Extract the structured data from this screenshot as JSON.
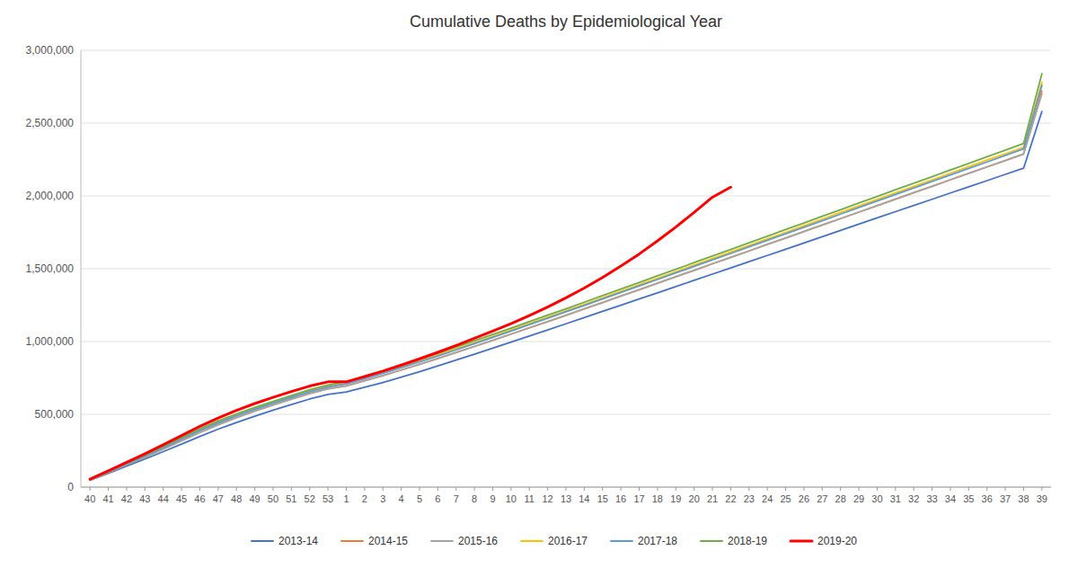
{
  "chart_data": {
    "type": "line",
    "title": "Cumulative Deaths by Epidemiological Year",
    "categories": [
      "40",
      "41",
      "42",
      "43",
      "44",
      "45",
      "46",
      "47",
      "48",
      "49",
      "50",
      "51",
      "52",
      "53",
      "1",
      "2",
      "3",
      "4",
      "5",
      "6",
      "7",
      "8",
      "9",
      "10",
      "11",
      "12",
      "13",
      "14",
      "15",
      "16",
      "17",
      "18",
      "19",
      "20",
      "21",
      "22",
      "23",
      "24",
      "25",
      "26",
      "27",
      "28",
      "29",
      "30",
      "31",
      "32",
      "33",
      "34",
      "35",
      "36",
      "37",
      "38",
      "39"
    ],
    "series": [
      {
        "name": "2013-14",
        "color": "#4472C4",
        "values": [
          47000,
          95000,
          144000,
          193000,
          244000,
          296000,
          348000,
          398000,
          444000,
          487000,
          528000,
          567000,
          605000,
          637000,
          654000,
          686000,
          719000,
          755000,
          793000,
          832000,
          873000,
          913000,
          954000,
          996000,
          1038000,
          1080000,
          1122000,
          1164000,
          1207000,
          1249000,
          1292000,
          1334000,
          1377000,
          1420000,
          1463000,
          1505000,
          1548000,
          1591000,
          1634000,
          1677000,
          1720000,
          1763000,
          1806000,
          1849000,
          1892000,
          1935000,
          1977000,
          2020000,
          2063000,
          2105000,
          2148000,
          2190000,
          2580000
        ]
      },
      {
        "name": "2014-15",
        "color": "#ED7D31",
        "values": [
          50000,
          101000,
          153000,
          206000,
          261000,
          318000,
          375000,
          428000,
          477000,
          522000,
          564000,
          604000,
          643000,
          675000,
          695000,
          730000,
          766000,
          804000,
          843000,
          884000,
          925000,
          966000,
          1008000,
          1051000,
          1094000,
          1137000,
          1180000,
          1224000,
          1268000,
          1312000,
          1356000,
          1400000,
          1445000,
          1489000,
          1534000,
          1578000,
          1622000,
          1667000,
          1711000,
          1756000,
          1800000,
          1844000,
          1889000,
          1933000,
          1978000,
          2022000,
          2066000,
          2111000,
          2155000,
          2199000,
          2243000,
          2288000,
          2720000
        ]
      },
      {
        "name": "2015-16",
        "color": "#A5A5A5",
        "values": [
          50000,
          101000,
          153000,
          206000,
          261000,
          318000,
          375000,
          428000,
          477000,
          522000,
          564000,
          604000,
          643000,
          675000,
          695000,
          730000,
          766000,
          804000,
          843000,
          884000,
          925000,
          966000,
          1008000,
          1051000,
          1094000,
          1137000,
          1180000,
          1224000,
          1268000,
          1312000,
          1356000,
          1400000,
          1445000,
          1489000,
          1534000,
          1578000,
          1622000,
          1667000,
          1711000,
          1756000,
          1800000,
          1844000,
          1889000,
          1933000,
          1978000,
          2022000,
          2066000,
          2111000,
          2155000,
          2199000,
          2243000,
          2288000,
          2700000
        ]
      },
      {
        "name": "2016-17",
        "color": "#FFC000",
        "values": [
          52000,
          106000,
          161000,
          217000,
          274000,
          334000,
          393000,
          447000,
          496000,
          540000,
          581000,
          621000,
          660000,
          693000,
          714000,
          750000,
          787000,
          826000,
          866000,
          908000,
          950000,
          992000,
          1035000,
          1079000,
          1123000,
          1167000,
          1211000,
          1256000,
          1300000,
          1345000,
          1390000,
          1435000,
          1480000,
          1525000,
          1570000,
          1615000,
          1660000,
          1705000,
          1750000,
          1796000,
          1841000,
          1886000,
          1931000,
          1976000,
          2021000,
          2066000,
          2111000,
          2156000,
          2201000,
          2246000,
          2290000,
          2335000,
          2780000
        ]
      },
      {
        "name": "2017-18",
        "color": "#5B9BD5",
        "values": [
          51000,
          104000,
          158000,
          213000,
          270000,
          329000,
          388000,
          441000,
          490000,
          535000,
          576000,
          616000,
          655000,
          688000,
          709000,
          744000,
          781000,
          820000,
          860000,
          901000,
          943000,
          985000,
          1028000,
          1072000,
          1116000,
          1160000,
          1204000,
          1248000,
          1293000,
          1337000,
          1382000,
          1426000,
          1471000,
          1516000,
          1561000,
          1605000,
          1650000,
          1695000,
          1740000,
          1785000,
          1830000,
          1875000,
          1920000,
          1965000,
          2010000,
          2055000,
          2099000,
          2144000,
          2189000,
          2233000,
          2278000,
          2323000,
          2760000
        ]
      },
      {
        "name": "2018-19",
        "color": "#70AD47",
        "values": [
          53000,
          108000,
          164000,
          220000,
          279000,
          340000,
          400000,
          454000,
          503000,
          547000,
          589000,
          629000,
          669000,
          702000,
          724000,
          760000,
          797000,
          837000,
          877000,
          919000,
          962000,
          1005000,
          1048000,
          1092000,
          1136000,
          1181000,
          1225000,
          1270000,
          1315000,
          1360000,
          1405000,
          1451000,
          1496000,
          1542000,
          1587000,
          1632000,
          1678000,
          1723000,
          1769000,
          1814000,
          1860000,
          1905000,
          1951000,
          1996000,
          2042000,
          2087000,
          2132000,
          2178000,
          2223000,
          2269000,
          2314000,
          2360000,
          2840000
        ]
      },
      {
        "name": "2019-20",
        "color": "#FF0000",
        "values": [
          55000,
          112000,
          170000,
          229000,
          291000,
          354000,
          417000,
          475000,
          527000,
          574000,
          617000,
          657000,
          694000,
          723000,
          723000,
          759000,
          797000,
          838000,
          881000,
          926000,
          973000,
          1022000,
          1072000,
          1123000,
          1178000,
          1237000,
          1300000,
          1367000,
          1440000,
          1518000,
          1601000,
          1691000,
          1786000,
          1887000,
          1991000,
          2060000,
          null,
          null,
          null,
          null,
          null,
          null,
          null,
          null,
          null,
          null,
          null,
          null,
          null,
          null,
          null,
          null,
          null
        ]
      }
    ],
    "ylim": [
      0,
      3000000
    ],
    "yticks": [
      0,
      {
        "value": 500000,
        "label": "500,000"
      },
      {
        "value": 1000000,
        "label": "1,000,000"
      },
      {
        "value": 1500000,
        "label": "1,500,000"
      },
      {
        "value": 2000000,
        "label": "2,000,000"
      },
      {
        "value": 2500000,
        "label": "2,500,000"
      },
      {
        "value": 3000000,
        "label": "3,000,000"
      }
    ],
    "grid": true,
    "legend": "bottom"
  }
}
